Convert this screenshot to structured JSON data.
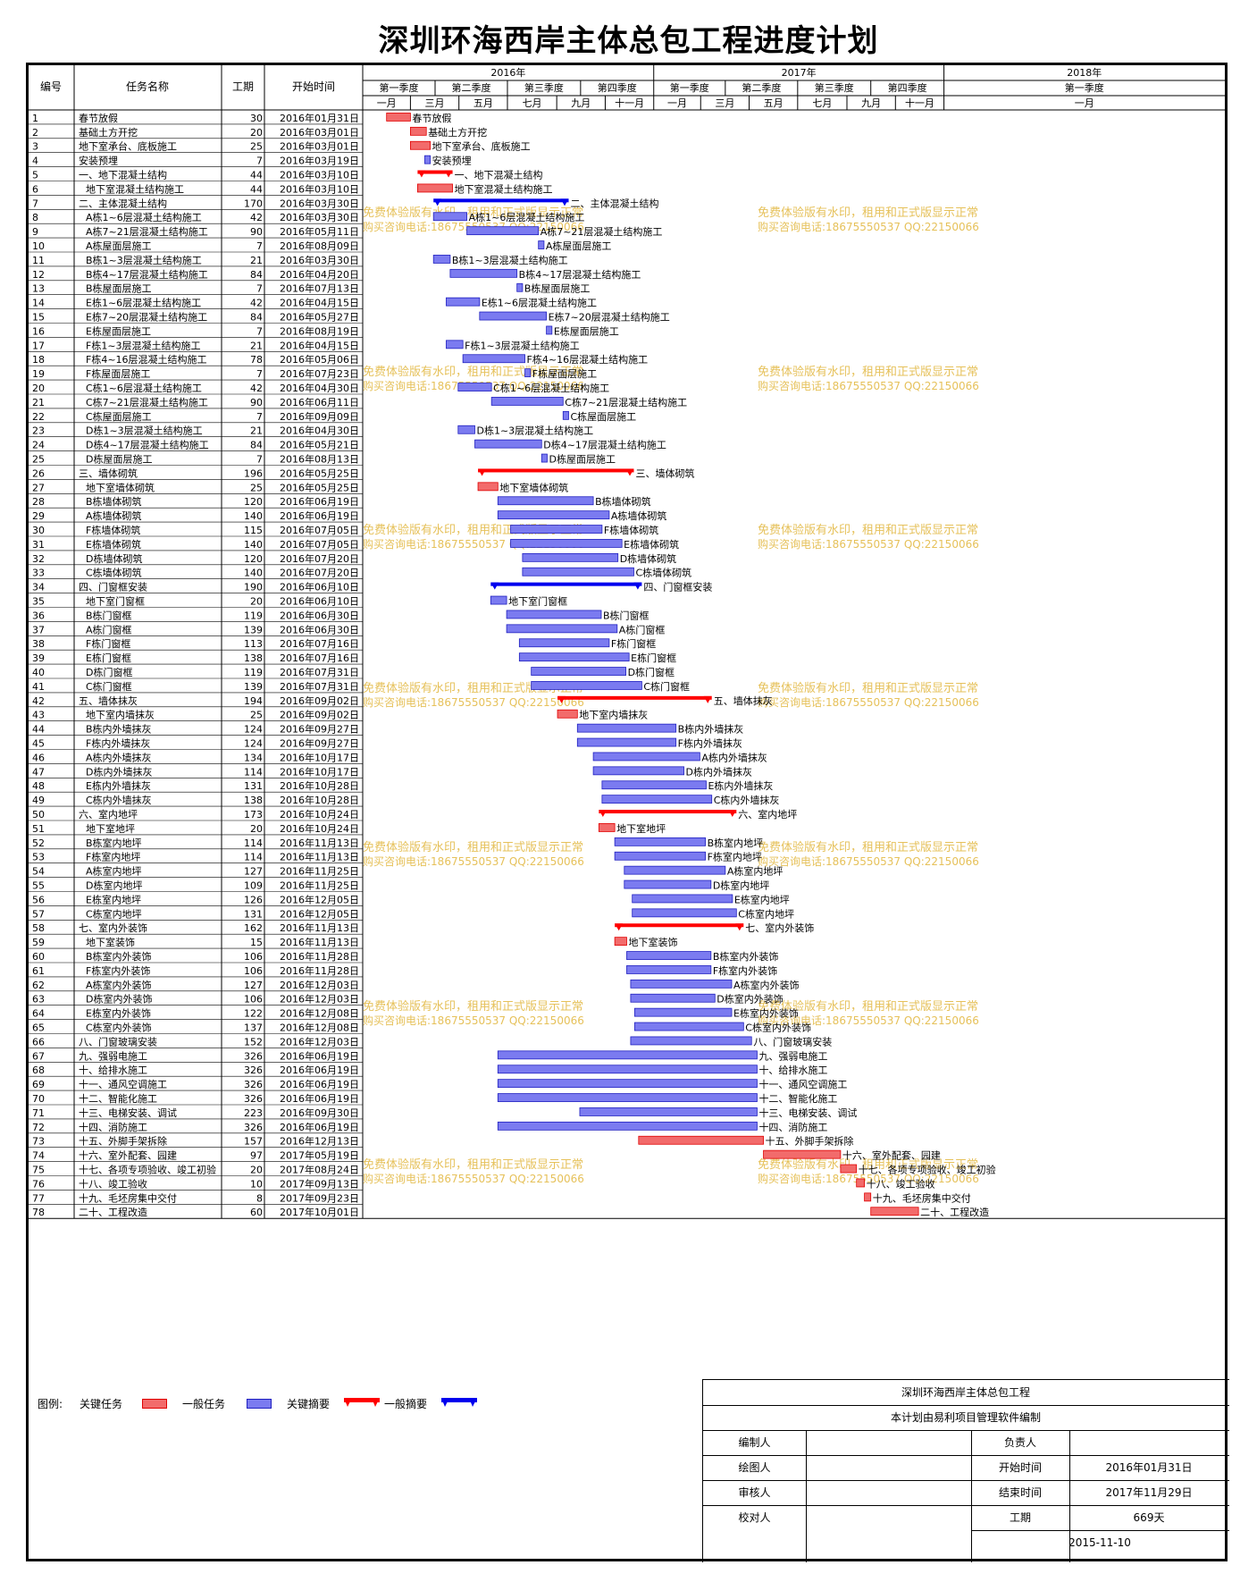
{
  "title": "深圳环海西岸主体总包工程进度计划",
  "headers": {
    "id": "编号",
    "name": "任务名称",
    "dur": "工期",
    "start": "开始时间"
  },
  "years": [
    "2016年",
    "2017年",
    "2018年"
  ],
  "quarters": [
    "第一季度",
    "第二季度",
    "第三季度",
    "第四季度",
    "第一季度",
    "第二季度",
    "第三季度",
    "第四季度",
    "第一季度"
  ],
  "months": [
    "一月",
    "三月",
    "五月",
    "七月",
    "九月",
    "十一月",
    "一月",
    "三月",
    "五月",
    "七月",
    "九月",
    "十一月",
    "一月"
  ],
  "watermark": [
    "免费体验版有水印，租用和正式版显示正常",
    "购买咨询电话:18675550537 QQ:22150066"
  ],
  "legend": {
    "label": "图例:",
    "critical_task": "关键任务",
    "normal_task": "一般任务",
    "critical_summary": "关键摘要",
    "normal_summary": "一般摘要"
  },
  "info": {
    "project": "深圳环海西岸主体总包工程",
    "software": "本计划由易利项目管理软件编制",
    "rows": [
      [
        "编制人",
        "",
        "负责人",
        ""
      ],
      [
        "绘图人",
        "",
        "开始时间",
        "2016年01月31日"
      ],
      [
        "审核人",
        "",
        "结束时间",
        "2017年11月29日"
      ],
      [
        "校对人",
        "",
        "工期",
        "669天"
      ]
    ],
    "date": "2015-11-10"
  },
  "colors": {
    "critical": "#f26b6b",
    "critical_border": "#e00000",
    "normal": "#7b7bf0",
    "normal_border": "#2020c0",
    "summary_red": "#ff0000",
    "summary_blue": "#0000ee",
    "link": "#0000cc",
    "watermark": "#e6c15a"
  },
  "chart_data": {
    "type": "gantt",
    "title": "深圳环海西岸主体总包工程进度计划",
    "columns": [
      "编号",
      "任务名称",
      "工期",
      "开始时间"
    ],
    "tasks": [
      {
        "id": "1",
        "name": "春节放假",
        "indent": 0,
        "dur": 30,
        "start": "2016-01-31",
        "kind": "critical",
        "label": "春节放假"
      },
      {
        "id": "2",
        "name": "基础土方开挖",
        "indent": 0,
        "dur": 20,
        "start": "2016-03-01",
        "kind": "critical",
        "label": "基础土方开挖"
      },
      {
        "id": "3",
        "name": "地下室承台、底板施工",
        "indent": 0,
        "dur": 25,
        "start": "2016-03-01",
        "kind": "critical",
        "label": "地下室承台、底板施工"
      },
      {
        "id": "4",
        "name": "安装预埋",
        "indent": 0,
        "dur": 7,
        "start": "2016-03-19",
        "kind": "normal",
        "label": "安装预埋"
      },
      {
        "id": "5",
        "name": "一、地下混凝土结构",
        "indent": 0,
        "dur": 44,
        "start": "2016-03-10",
        "kind": "critical_summary",
        "label": "一、地下混凝土结构"
      },
      {
        "id": "6",
        "name": "地下室混凝土结构施工",
        "indent": 1,
        "dur": 44,
        "start": "2016-03-10",
        "kind": "critical",
        "label": "地下室混凝土结构施工"
      },
      {
        "id": "7",
        "name": "二、主体混凝土结构",
        "indent": 0,
        "dur": 170,
        "start": "2016-03-30",
        "kind": "normal_summary",
        "label": "二、主体混凝土结构"
      },
      {
        "id": "8",
        "name": "A栋1~6层混凝土结构施工",
        "indent": 1,
        "dur": 42,
        "start": "2016-03-30",
        "kind": "normal",
        "label": "A栋1~6层混凝土结构施工"
      },
      {
        "id": "9",
        "name": "A栋7~21层混凝土结构施工",
        "indent": 1,
        "dur": 90,
        "start": "2016-05-11",
        "kind": "normal",
        "label": "A栋7~21层混凝土结构施工"
      },
      {
        "id": "10",
        "name": "A栋屋面层施工",
        "indent": 1,
        "dur": 7,
        "start": "2016-08-09",
        "kind": "normal",
        "label": "A栋屋面层施工"
      },
      {
        "id": "11",
        "name": "B栋1~3层混凝土结构施工",
        "indent": 1,
        "dur": 21,
        "start": "2016-03-30",
        "kind": "normal",
        "label": "B栋1~3层混凝土结构施工"
      },
      {
        "id": "12",
        "name": "B栋4~17层混凝土结构施工",
        "indent": 1,
        "dur": 84,
        "start": "2016-04-20",
        "kind": "normal",
        "label": "B栋4~17层混凝土结构施工"
      },
      {
        "id": "13",
        "name": "B栋屋面层施工",
        "indent": 1,
        "dur": 7,
        "start": "2016-07-13",
        "kind": "normal",
        "label": "B栋屋面层施工"
      },
      {
        "id": "14",
        "name": "E栋1~6层混凝土结构施工",
        "indent": 1,
        "dur": 42,
        "start": "2016-04-15",
        "kind": "normal",
        "label": "E栋1~6层混凝土结构施工"
      },
      {
        "id": "15",
        "name": "E栋7~20层混凝土结构施工",
        "indent": 1,
        "dur": 84,
        "start": "2016-05-27",
        "kind": "normal",
        "label": "E栋7~20层混凝土结构施工"
      },
      {
        "id": "16",
        "name": "E栋屋面层施工",
        "indent": 1,
        "dur": 7,
        "start": "2016-08-19",
        "kind": "normal",
        "label": "E栋屋面层施工"
      },
      {
        "id": "17",
        "name": "F栋1~3层混凝土结构施工",
        "indent": 1,
        "dur": 21,
        "start": "2016-04-15",
        "kind": "normal",
        "label": "F栋1~3层混凝土结构施工"
      },
      {
        "id": "18",
        "name": "F栋4~16层混凝土结构施工",
        "indent": 1,
        "dur": 78,
        "start": "2016-05-06",
        "kind": "normal",
        "label": "F栋4~16层混凝土结构施工"
      },
      {
        "id": "19",
        "name": "F栋屋面层施工",
        "indent": 1,
        "dur": 7,
        "start": "2016-07-23",
        "kind": "normal",
        "label": "F栋屋面层施工"
      },
      {
        "id": "20",
        "name": "C栋1~6层混凝土结构施工",
        "indent": 1,
        "dur": 42,
        "start": "2016-04-30",
        "kind": "normal",
        "label": "C栋1~6层混凝土结构施工"
      },
      {
        "id": "21",
        "name": "C栋7~21层混凝土结构施工",
        "indent": 1,
        "dur": 90,
        "start": "2016-06-11",
        "kind": "normal",
        "label": "C栋7~21层混凝土结构施工"
      },
      {
        "id": "22",
        "name": "C栋屋面层施工",
        "indent": 1,
        "dur": 7,
        "start": "2016-09-09",
        "kind": "normal",
        "label": "C栋屋面层施工"
      },
      {
        "id": "23",
        "name": "D栋1~3层混凝土结构施工",
        "indent": 1,
        "dur": 21,
        "start": "2016-04-30",
        "kind": "normal",
        "label": "D栋1~3层混凝土结构施工"
      },
      {
        "id": "24",
        "name": "D栋4~17层混凝土结构施工",
        "indent": 1,
        "dur": 84,
        "start": "2016-05-21",
        "kind": "normal",
        "label": "D栋4~17层混凝土结构施工"
      },
      {
        "id": "25",
        "name": "D栋屋面层施工",
        "indent": 1,
        "dur": 7,
        "start": "2016-08-13",
        "kind": "normal",
        "label": "D栋屋面层施工"
      },
      {
        "id": "26",
        "name": "三、墙体砌筑",
        "indent": 0,
        "dur": 196,
        "start": "2016-05-25",
        "kind": "critical_summary",
        "label": "三、墙体砌筑"
      },
      {
        "id": "27",
        "name": "地下室墙体砌筑",
        "indent": 1,
        "dur": 25,
        "start": "2016-05-25",
        "kind": "critical",
        "label": "地下室墙体砌筑"
      },
      {
        "id": "28",
        "name": "B栋墙体砌筑",
        "indent": 1,
        "dur": 120,
        "start": "2016-06-19",
        "kind": "normal",
        "label": "B栋墙体砌筑"
      },
      {
        "id": "29",
        "name": "A栋墙体砌筑",
        "indent": 1,
        "dur": 140,
        "start": "2016-06-19",
        "kind": "normal",
        "label": "A栋墙体砌筑"
      },
      {
        "id": "30",
        "name": "F栋墙体砌筑",
        "indent": 1,
        "dur": 115,
        "start": "2016-07-05",
        "kind": "normal",
        "label": "F栋墙体砌筑"
      },
      {
        "id": "31",
        "name": "E栋墙体砌筑",
        "indent": 1,
        "dur": 140,
        "start": "2016-07-05",
        "kind": "normal",
        "label": "E栋墙体砌筑"
      },
      {
        "id": "32",
        "name": "D栋墙体砌筑",
        "indent": 1,
        "dur": 120,
        "start": "2016-07-20",
        "kind": "normal",
        "label": "D栋墙体砌筑"
      },
      {
        "id": "33",
        "name": "C栋墙体砌筑",
        "indent": 1,
        "dur": 140,
        "start": "2016-07-20",
        "kind": "normal",
        "label": "C栋墙体砌筑"
      },
      {
        "id": "34",
        "name": "四、门窗框安装",
        "indent": 0,
        "dur": 190,
        "start": "2016-06-10",
        "kind": "normal_summary",
        "label": "四、门窗框安装"
      },
      {
        "id": "35",
        "name": "地下室门窗框",
        "indent": 1,
        "dur": 20,
        "start": "2016-06-10",
        "kind": "normal",
        "label": "地下室门窗框"
      },
      {
        "id": "36",
        "name": "B栋门窗框",
        "indent": 1,
        "dur": 119,
        "start": "2016-06-30",
        "kind": "normal",
        "label": "B栋门窗框"
      },
      {
        "id": "37",
        "name": "A栋门窗框",
        "indent": 1,
        "dur": 139,
        "start": "2016-06-30",
        "kind": "normal",
        "label": "A栋门窗框"
      },
      {
        "id": "38",
        "name": "F栋门窗框",
        "indent": 1,
        "dur": 113,
        "start": "2016-07-16",
        "kind": "normal",
        "label": "F栋门窗框"
      },
      {
        "id": "39",
        "name": "E栋门窗框",
        "indent": 1,
        "dur": 138,
        "start": "2016-07-16",
        "kind": "normal",
        "label": "E栋门窗框"
      },
      {
        "id": "40",
        "name": "D栋门窗框",
        "indent": 1,
        "dur": 119,
        "start": "2016-07-31",
        "kind": "normal",
        "label": "D栋门窗框"
      },
      {
        "id": "41",
        "name": "C栋门窗框",
        "indent": 1,
        "dur": 139,
        "start": "2016-07-31",
        "kind": "normal",
        "label": "C栋门窗框"
      },
      {
        "id": "42",
        "name": "五、墙体抹灰",
        "indent": 0,
        "dur": 194,
        "start": "2016-09-02",
        "kind": "critical_summary",
        "label": "五、墙体抹灰"
      },
      {
        "id": "43",
        "name": "地下室内墙抹灰",
        "indent": 1,
        "dur": 25,
        "start": "2016-09-02",
        "kind": "critical",
        "label": "地下室内墙抹灰"
      },
      {
        "id": "44",
        "name": "B栋内外墙抹灰",
        "indent": 1,
        "dur": 124,
        "start": "2016-09-27",
        "kind": "normal",
        "label": "B栋内外墙抹灰"
      },
      {
        "id": "45",
        "name": "F栋内外墙抹灰",
        "indent": 1,
        "dur": 124,
        "start": "2016-09-27",
        "kind": "normal",
        "label": "F栋内外墙抹灰"
      },
      {
        "id": "46",
        "name": "A栋内外墙抹灰",
        "indent": 1,
        "dur": 134,
        "start": "2016-10-17",
        "kind": "normal",
        "label": "A栋内外墙抹灰"
      },
      {
        "id": "47",
        "name": "D栋内外墙抹灰",
        "indent": 1,
        "dur": 114,
        "start": "2016-10-17",
        "kind": "normal",
        "label": "D栋内外墙抹灰"
      },
      {
        "id": "48",
        "name": "E栋内外墙抹灰",
        "indent": 1,
        "dur": 131,
        "start": "2016-10-28",
        "kind": "normal",
        "label": "E栋内外墙抹灰"
      },
      {
        "id": "49",
        "name": "C栋内外墙抹灰",
        "indent": 1,
        "dur": 138,
        "start": "2016-10-28",
        "kind": "normal",
        "label": "C栋内外墙抹灰"
      },
      {
        "id": "50",
        "name": "六、室内地坪",
        "indent": 0,
        "dur": 173,
        "start": "2016-10-24",
        "kind": "critical_summary",
        "label": "六、室内地坪"
      },
      {
        "id": "51",
        "name": "地下室地坪",
        "indent": 1,
        "dur": 20,
        "start": "2016-10-24",
        "kind": "critical",
        "label": "地下室地坪"
      },
      {
        "id": "52",
        "name": "B栋室内地坪",
        "indent": 1,
        "dur": 114,
        "start": "2016-11-13",
        "kind": "normal",
        "label": "B栋室内地坪"
      },
      {
        "id": "53",
        "name": "F栋室内地坪",
        "indent": 1,
        "dur": 114,
        "start": "2016-11-13",
        "kind": "normal",
        "label": "F栋室内地坪"
      },
      {
        "id": "54",
        "name": "A栋室内地坪",
        "indent": 1,
        "dur": 127,
        "start": "2016-11-25",
        "kind": "normal",
        "label": "A栋室内地坪"
      },
      {
        "id": "55",
        "name": "D栋室内地坪",
        "indent": 1,
        "dur": 109,
        "start": "2016-11-25",
        "kind": "normal",
        "label": "D栋室内地坪"
      },
      {
        "id": "56",
        "name": "E栋室内地坪",
        "indent": 1,
        "dur": 126,
        "start": "2016-12-05",
        "kind": "normal",
        "label": "E栋室内地坪"
      },
      {
        "id": "57",
        "name": "C栋室内地坪",
        "indent": 1,
        "dur": 131,
        "start": "2016-12-05",
        "kind": "normal",
        "label": "C栋室内地坪"
      },
      {
        "id": "58",
        "name": "七、室内外装饰",
        "indent": 0,
        "dur": 162,
        "start": "2016-11-13",
        "kind": "critical_summary",
        "label": "七、室内外装饰"
      },
      {
        "id": "59",
        "name": "地下室装饰",
        "indent": 1,
        "dur": 15,
        "start": "2016-11-13",
        "kind": "critical",
        "label": "地下室装饰"
      },
      {
        "id": "60",
        "name": "B栋室内外装饰",
        "indent": 1,
        "dur": 106,
        "start": "2016-11-28",
        "kind": "normal",
        "label": "B栋室内外装饰"
      },
      {
        "id": "61",
        "name": "F栋室内外装饰",
        "indent": 1,
        "dur": 106,
        "start": "2016-11-28",
        "kind": "normal",
        "label": "F栋室内外装饰"
      },
      {
        "id": "62",
        "name": "A栋室内外装饰",
        "indent": 1,
        "dur": 127,
        "start": "2016-12-03",
        "kind": "normal",
        "label": "A栋室内外装饰"
      },
      {
        "id": "63",
        "name": "D栋室内外装饰",
        "indent": 1,
        "dur": 106,
        "start": "2016-12-03",
        "kind": "normal",
        "label": "D栋室内外装饰"
      },
      {
        "id": "64",
        "name": "E栋室内外装饰",
        "indent": 1,
        "dur": 122,
        "start": "2016-12-08",
        "kind": "normal",
        "label": "E栋室内外装饰"
      },
      {
        "id": "65",
        "name": "C栋室内外装饰",
        "indent": 1,
        "dur": 137,
        "start": "2016-12-08",
        "kind": "normal",
        "label": "C栋室内外装饰"
      },
      {
        "id": "66",
        "name": "八、门窗玻璃安装",
        "indent": 0,
        "dur": 152,
        "start": "2016-12-03",
        "kind": "normal",
        "label": "八、门窗玻璃安装"
      },
      {
        "id": "67",
        "name": "九、强弱电施工",
        "indent": 0,
        "dur": 326,
        "start": "2016-06-19",
        "kind": "normal",
        "label": "九、强弱电施工"
      },
      {
        "id": "68",
        "name": "十、给排水施工",
        "indent": 0,
        "dur": 326,
        "start": "2016-06-19",
        "kind": "normal",
        "label": "十、给排水施工"
      },
      {
        "id": "69",
        "name": "十一、通风空调施工",
        "indent": 0,
        "dur": 326,
        "start": "2016-06-19",
        "kind": "normal",
        "label": "十一、通风空调施工"
      },
      {
        "id": "70",
        "name": "十二、智能化施工",
        "indent": 0,
        "dur": 326,
        "start": "2016-06-19",
        "kind": "normal",
        "label": "十二、智能化施工"
      },
      {
        "id": "71",
        "name": "十三、电梯安装、调试",
        "indent": 0,
        "dur": 223,
        "start": "2016-09-30",
        "kind": "normal",
        "label": "十三、电梯安装、调试"
      },
      {
        "id": "72",
        "name": "十四、消防施工",
        "indent": 0,
        "dur": 326,
        "start": "2016-06-19",
        "kind": "normal",
        "label": "十四、消防施工"
      },
      {
        "id": "73",
        "name": "十五、外脚手架拆除",
        "indent": 0,
        "dur": 157,
        "start": "2016-12-13",
        "kind": "critical",
        "label": "十五、外脚手架拆除"
      },
      {
        "id": "74",
        "name": "十六、室外配套、园建",
        "indent": 0,
        "dur": 97,
        "start": "2017-05-19",
        "kind": "critical",
        "label": "十六、室外配套、园建"
      },
      {
        "id": "75",
        "name": "十七、各项专项验收、竣工初验",
        "indent": 0,
        "dur": 20,
        "start": "2017-08-24",
        "kind": "critical",
        "label": "十七、各项专项验收、竣工初验"
      },
      {
        "id": "76",
        "name": "十八、竣工验收",
        "indent": 0,
        "dur": 10,
        "start": "2017-09-13",
        "kind": "critical",
        "label": "十八、竣工验收"
      },
      {
        "id": "77",
        "name": "十九、毛坯房集中交付",
        "indent": 0,
        "dur": 8,
        "start": "2017-09-23",
        "kind": "critical",
        "label": "十九、毛坯房集中交付"
      },
      {
        "id": "78",
        "name": "二十、工程改造",
        "indent": 0,
        "dur": 60,
        "start": "2017-10-01",
        "kind": "critical",
        "label": "二十、工程改造"
      }
    ]
  }
}
